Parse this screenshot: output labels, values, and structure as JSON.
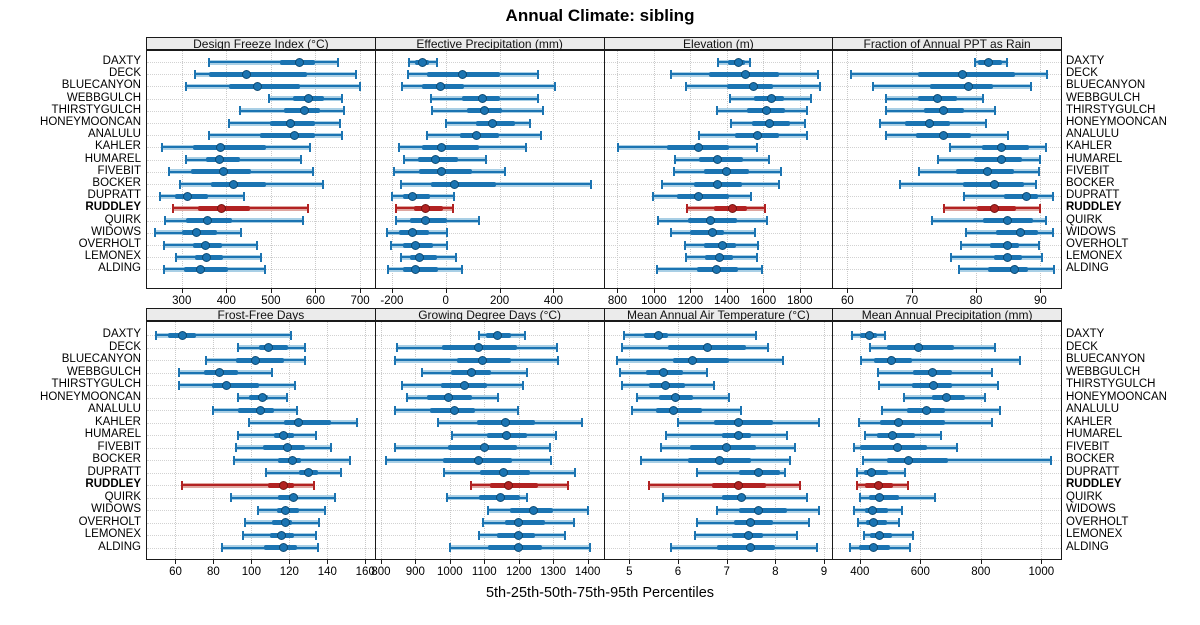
{
  "title": "Annual Climate: sibling",
  "footer_label": "5th-25th-50th-75th-95th Percentiles",
  "chart_data": {
    "type": "dotplot",
    "title": "Annual Climate: sibling",
    "xlabel": "5th-25th-50th-75th-95th Percentiles",
    "percentiles": [
      5,
      25,
      50,
      75,
      95
    ],
    "grid": "dotted",
    "legend_position": "none",
    "highlight_site": "RUDDLEY",
    "colors": {
      "normal": "#1b74b2",
      "normal_light": "#a9cfe5",
      "normal_dark": "#0d4a73",
      "highlight": "#b22222",
      "highlight_light": "#dfa6a0",
      "highlight_dark": "#731511",
      "strip_bg": "#ebebeb",
      "grid": "#c9c9c9"
    },
    "sites": [
      "DAXTY",
      "DECK",
      "BLUECANYON",
      "WEBBGULCH",
      "THIRSTYGULCH",
      "HONEYMOONCAN",
      "ANALULU",
      "KAHLER",
      "HUMAREL",
      "FIVEBIT",
      "BOCKER",
      "DUPRATT",
      "RUDDLEY",
      "QUIRK",
      "WIDOWS",
      "OVERHOLT",
      "LEMONEX",
      "ALDING"
    ],
    "panels": [
      {
        "title": "Design Freeze Index (°C)",
        "ticks": [
          300,
          400,
          500,
          600,
          700
        ],
        "xlim": [
          222,
          733
        ],
        "values": [
          [
            360,
            520,
            565,
            600,
            650
          ],
          [
            330,
            360,
            445,
            580,
            690
          ],
          [
            310,
            405,
            470,
            565,
            700
          ],
          [
            495,
            550,
            585,
            620,
            660
          ],
          [
            430,
            530,
            575,
            610,
            665
          ],
          [
            405,
            497,
            543,
            600,
            656
          ],
          [
            360,
            475,
            553,
            598,
            660
          ],
          [
            255,
            325,
            388,
            490,
            588
          ],
          [
            310,
            355,
            385,
            430,
            568
          ],
          [
            272,
            320,
            394,
            455,
            594
          ],
          [
            296,
            366,
            416,
            490,
            618
          ],
          [
            251,
            284,
            313,
            358,
            440
          ],
          [
            281,
            336,
            390,
            453,
            584
          ],
          [
            263,
            310,
            358,
            413,
            571
          ],
          [
            241,
            300,
            334,
            380,
            433
          ],
          [
            261,
            325,
            353,
            390,
            468
          ],
          [
            286,
            330,
            356,
            393,
            478
          ],
          [
            261,
            306,
            342,
            403,
            487
          ]
        ]
      },
      {
        "title": "Effective Precipitation (mm)",
        "ticks": [
          -200,
          0,
          200,
          400
        ],
        "xlim": [
          -260,
          586
        ],
        "values": [
          [
            -138,
            -113,
            -86,
            -61,
            -34
          ],
          [
            -142,
            -71,
            61,
            200,
            343
          ],
          [
            -163,
            -88,
            -21,
            69,
            405
          ],
          [
            -55,
            61,
            135,
            202,
            343
          ],
          [
            -51,
            78,
            144,
            210,
            361
          ],
          [
            0,
            113,
            175,
            256,
            314
          ],
          [
            -71,
            53,
            116,
            197,
            355
          ],
          [
            -173,
            -88,
            -14,
            125,
            297
          ],
          [
            -154,
            -104,
            -39,
            45,
            148
          ],
          [
            -191,
            -98,
            -17,
            98,
            219
          ],
          [
            -166,
            -55,
            32,
            185,
            538
          ],
          [
            -200,
            -158,
            -123,
            -58,
            30
          ],
          [
            -185,
            -117,
            -76,
            -9,
            26
          ],
          [
            -183,
            -133,
            -77,
            4,
            125
          ],
          [
            -220,
            -173,
            -125,
            -63,
            4
          ],
          [
            -204,
            -158,
            -113,
            -46,
            4
          ],
          [
            -166,
            -133,
            -96,
            -34,
            39
          ],
          [
            -216,
            -158,
            -113,
            -30,
            61
          ]
        ]
      },
      {
        "title": "Elevation (m)",
        "ticks": [
          800,
          1000,
          1200,
          1400,
          1600,
          1800
        ],
        "xlim": [
          729,
          1978
        ],
        "values": [
          [
            1350,
            1405,
            1465,
            1500,
            1525
          ],
          [
            1096,
            1302,
            1502,
            1684,
            1900
          ],
          [
            1178,
            1400,
            1545,
            1655,
            1910
          ],
          [
            1415,
            1550,
            1647,
            1715,
            1860
          ],
          [
            1345,
            1510,
            1618,
            1720,
            1840
          ],
          [
            1424,
            1538,
            1636,
            1745,
            1829
          ],
          [
            1247,
            1442,
            1569,
            1684,
            1842
          ],
          [
            805,
            1073,
            1242,
            1410,
            1564
          ],
          [
            1115,
            1247,
            1351,
            1487,
            1630
          ],
          [
            1110,
            1273,
            1400,
            1520,
            1696
          ],
          [
            1047,
            1218,
            1351,
            1484,
            1684
          ],
          [
            993,
            1127,
            1242,
            1410,
            1533
          ],
          [
            1182,
            1327,
            1429,
            1509,
            1611
          ],
          [
            1024,
            1187,
            1309,
            1455,
            1618
          ],
          [
            1091,
            1200,
            1320,
            1382,
            1556
          ],
          [
            1169,
            1273,
            1375,
            1450,
            1569
          ],
          [
            1175,
            1278,
            1360,
            1436,
            1564
          ],
          [
            1018,
            1236,
            1345,
            1460,
            1593
          ]
        ]
      },
      {
        "title": "Fraction of Annual PPT as Rain",
        "ticks": [
          60,
          70,
          80,
          90
        ],
        "xlim": [
          57.8,
          93.2
        ],
        "values": [
          [
            79.8,
            80.3,
            82.0,
            84.0,
            84.8
          ],
          [
            60.5,
            71,
            77.9,
            86,
            91
          ],
          [
            64,
            72.8,
            78.8,
            82.7,
            88.6
          ],
          [
            66,
            71,
            74,
            77,
            81
          ],
          [
            66,
            71.9,
            75,
            78.1,
            82.9
          ],
          [
            65,
            69,
            72.8,
            76,
            81.5
          ],
          [
            66,
            70.7,
            75,
            79.2,
            84.9
          ],
          [
            76,
            80.9,
            84,
            88.3,
            90.9
          ],
          [
            74.1,
            79.7,
            84,
            87.1,
            90
          ],
          [
            71.2,
            76.9,
            81.8,
            85.9,
            89.8
          ],
          [
            68.1,
            77.9,
            82.8,
            87.5,
            89.3
          ],
          [
            78.1,
            84.3,
            87.8,
            89.7,
            91.9
          ],
          [
            75,
            80.2,
            82.9,
            86.2,
            90
          ],
          [
            73.1,
            81,
            84.9,
            88.8,
            90.9
          ],
          [
            78.4,
            83.1,
            86.9,
            89.7,
            91.9
          ],
          [
            77.6,
            82.1,
            84.9,
            86.7,
            89.8
          ],
          [
            76.1,
            82.8,
            84.9,
            87.2,
            90.2
          ],
          [
            77.4,
            81.8,
            85.9,
            88.1,
            92.1
          ]
        ]
      },
      {
        "title": "Frost-Free Days",
        "ticks": [
          60,
          80,
          100,
          120,
          140,
          160
        ],
        "xlim": [
          45,
          165
        ],
        "values": [
          [
            49.6,
            56,
            63.5,
            70.8,
            121
          ],
          [
            93,
            104,
            109,
            119.5,
            128
          ],
          [
            76,
            92,
            102,
            117,
            128.5
          ],
          [
            62,
            75,
            83,
            93,
            111
          ],
          [
            62,
            79,
            87,
            104,
            123
          ],
          [
            93,
            98.6,
            106,
            108.7,
            119
          ],
          [
            80,
            93,
            105,
            112,
            124
          ],
          [
            98.6,
            117,
            125,
            142,
            155.6
          ],
          [
            93,
            112,
            117,
            122.6,
            134
          ],
          [
            92,
            106,
            119,
            128,
            142
          ],
          [
            91,
            114,
            121.5,
            126,
            152
          ],
          [
            107.6,
            125,
            130,
            135,
            147
          ],
          [
            63.5,
            109,
            117,
            122.6,
            133
          ],
          [
            89.5,
            114,
            122,
            124.5,
            144
          ],
          [
            103.5,
            113.4,
            118,
            125,
            139
          ],
          [
            96.5,
            111,
            118,
            121.5,
            135.5
          ],
          [
            95.5,
            110,
            116,
            122.6,
            134
          ],
          [
            84.3,
            106.4,
            117,
            124,
            135
          ]
        ]
      },
      {
        "title": "Growing Degree Days (°C)",
        "ticks": [
          800,
          900,
          1000,
          1100,
          1200,
          1300,
          1400
        ],
        "xlim": [
          785,
          1446
        ],
        "values": [
          [
            1084,
            1105,
            1139,
            1178,
            1219
          ],
          [
            848,
            977,
            1084,
            1194,
            1310
          ],
          [
            842,
            1020,
            1095,
            1178,
            1313
          ],
          [
            919,
            1003,
            1064,
            1119,
            1223
          ],
          [
            861,
            974,
            1042,
            1107,
            1213
          ],
          [
            875,
            933,
            996,
            1064,
            1139
          ],
          [
            842,
            942,
            1013,
            1074,
            1197
          ],
          [
            965,
            1078,
            1161,
            1248,
            1384
          ],
          [
            1006,
            1107,
            1165,
            1223,
            1308
          ],
          [
            842,
            996,
            1100,
            1194,
            1291
          ],
          [
            816,
            981,
            1084,
            1180,
            1294
          ],
          [
            984,
            1087,
            1155,
            1233,
            1364
          ],
          [
            1061,
            1117,
            1171,
            1255,
            1342
          ],
          [
            991,
            1084,
            1146,
            1205,
            1223
          ],
          [
            1110,
            1175,
            1242,
            1300,
            1400
          ],
          [
            1097,
            1161,
            1200,
            1277,
            1359
          ],
          [
            1084,
            1136,
            1200,
            1248,
            1335
          ],
          [
            1000,
            1110,
            1200,
            1268,
            1407
          ]
        ]
      },
      {
        "title": "Mean Annual Air Temperature (°C)",
        "ticks": [
          5,
          6,
          7,
          8,
          9
        ],
        "xlim": [
          4.49,
          9.17
        ],
        "values": [
          [
            4.9,
            5.3,
            5.6,
            5.8,
            7.6
          ],
          [
            4.85,
            5.8,
            6.6,
            7.4,
            7.85
          ],
          [
            4.75,
            5.9,
            6.3,
            7.05,
            8.15
          ],
          [
            4.8,
            5.35,
            5.7,
            6.1,
            6.6
          ],
          [
            4.85,
            5.4,
            5.75,
            6.15,
            6.75
          ],
          [
            5.15,
            5.6,
            5.95,
            6.3,
            7.05
          ],
          [
            5.05,
            5.55,
            5.9,
            6.5,
            7.3
          ],
          [
            6.0,
            6.75,
            7.25,
            7.95,
            8.9
          ],
          [
            5.75,
            6.9,
            7.25,
            7.5,
            8.25
          ],
          [
            5.65,
            6.25,
            7.0,
            7.6,
            8.4
          ],
          [
            5.25,
            6.2,
            6.85,
            7.5,
            8.3
          ],
          [
            6.4,
            7.25,
            7.65,
            8.1,
            8.2
          ],
          [
            5.4,
            6.7,
            7.25,
            7.8,
            8.5
          ],
          [
            5.7,
            6.9,
            7.3,
            7.4,
            8.65
          ],
          [
            6.8,
            7.25,
            7.65,
            8.25,
            8.9
          ],
          [
            6.4,
            7.15,
            7.5,
            7.95,
            8.7
          ],
          [
            6.35,
            7.1,
            7.45,
            7.75,
            8.45
          ],
          [
            5.85,
            6.8,
            7.5,
            8.0,
            8.85
          ]
        ]
      },
      {
        "title": "Mean Annual Precipitation (mm)",
        "ticks": [
          400,
          600,
          800,
          1000
        ],
        "xlim": [
          312,
          1065
        ],
        "values": [
          [
            373,
            402,
            431,
            457,
            482
          ],
          [
            435,
            490,
            595,
            712,
            847
          ],
          [
            405,
            446,
            504,
            573,
            928
          ],
          [
            460,
            577,
            639,
            704,
            836
          ],
          [
            464,
            573,
            643,
            704,
            858
          ],
          [
            545,
            639,
            685,
            748,
            814
          ],
          [
            474,
            556,
            621,
            683,
            862
          ],
          [
            398,
            468,
            529,
            683,
            836
          ],
          [
            416,
            457,
            507,
            581,
            668
          ],
          [
            380,
            402,
            523,
            621,
            720
          ],
          [
            409,
            490,
            562,
            690,
            1033
          ],
          [
            391,
            413,
            438,
            493,
            548
          ],
          [
            391,
            416,
            460,
            510,
            559
          ],
          [
            402,
            431,
            464,
            529,
            650
          ],
          [
            380,
            416,
            442,
            493,
            540
          ],
          [
            394,
            420,
            446,
            490,
            529
          ],
          [
            413,
            435,
            464,
            507,
            577
          ],
          [
            369,
            398,
            444,
            501,
            566
          ]
        ]
      }
    ]
  }
}
